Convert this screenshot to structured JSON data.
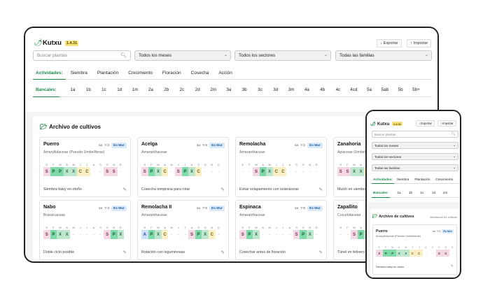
{
  "app": {
    "name": "Kutxu",
    "version": "1.4.31"
  },
  "toolbar": {
    "export_label": "Exportar",
    "import_label": "Importar"
  },
  "filters": {
    "search_placeholder": "Buscar plantas",
    "months": "Todos los meses",
    "sectors": "Todos los sectores",
    "families": "Todas las familias"
  },
  "activities": {
    "label": "Actividades:",
    "items": [
      "Siembra",
      "Plantación",
      "Crecimiento",
      "Floración",
      "Cosecha",
      "Acción"
    ]
  },
  "bancales": {
    "label": "Bancales:",
    "items": [
      "1a",
      "1b",
      "1c",
      "1d",
      "1m",
      "2a",
      "2b",
      "2c",
      "2d",
      "2m",
      "3a",
      "3b",
      "3c",
      "3d",
      "3m",
      "4a",
      "4b",
      "4c",
      "4cd",
      "5a",
      "5ab",
      "5b",
      "5b+"
    ]
  },
  "archive": {
    "title": "Archivo de cultivos",
    "count": "Mostrando 81 cultivos"
  },
  "month_letters": [
    "E",
    "F",
    "M",
    "A",
    "M",
    "J",
    "J",
    "A",
    "S",
    "O",
    "N",
    "D"
  ],
  "crops": [
    {
      "name": "Puerro",
      "family": "Amaryllidaceae (Pseudo Umbelíferas)",
      "meta1": "4a",
      "meta2": "Y:3",
      "badge": "Es Mur",
      "cells": [
        "S",
        "P",
        "P",
        "X",
        "X",
        "C",
        "C",
        "-",
        "-",
        "S",
        "S",
        "-"
      ],
      "note": "Siembra baby en otoño"
    },
    {
      "name": "Acelga",
      "family": "Amaranthaceae",
      "meta1": "4a",
      "meta2": "Y:6",
      "badge": "Es Mur",
      "cells": [
        "S",
        "P",
        "X",
        "C",
        "-",
        "S",
        "P",
        "X",
        "C",
        "-",
        "-",
        "-"
      ],
      "note": "Cosecha temprana para rotar"
    },
    {
      "name": "Remolacha",
      "family": "Amaranthaceae",
      "meta1": "4a",
      "meta2": "Y:2",
      "badge": "Es Mur",
      "cells": [
        "-",
        "-",
        "S",
        "P",
        "X",
        "C",
        "C",
        "-",
        "-",
        "-",
        "-",
        "-"
      ],
      "note": "Evitar solapamiento con solanáceas"
    },
    {
      "name": "Zanahoria",
      "family": "Apiaceae (Umbelíferas)",
      "meta1": "",
      "meta2": "",
      "badge": "",
      "cells": [
        "S",
        "S",
        "X",
        "X",
        "C",
        "-",
        "-",
        "-",
        "-",
        "-",
        "-",
        "-"
      ],
      "note": "Mulch en siembra"
    },
    {
      "name": "Nabo",
      "family": "Brassicaceae",
      "meta1": "1a",
      "meta2": "Y:3",
      "badge": "Es Mur",
      "cells": [
        "S",
        "P",
        "X",
        "X",
        "-",
        "-",
        "-",
        "-",
        "-",
        "S",
        "P",
        "X"
      ],
      "note": "Doble ciclo posible"
    },
    {
      "name": "Remolacha II",
      "family": "Amaranthaceae",
      "meta1": "1a",
      "meta2": "Y:5",
      "badge": "Es Mur",
      "cells": [
        "A",
        "P",
        "X",
        "C",
        "-",
        "-",
        "-",
        "S",
        "P",
        "X",
        "C",
        "-"
      ],
      "note": "Rotación con leguminosas"
    },
    {
      "name": "Espinaca",
      "family": "Amaranthaceae",
      "meta1": "1a",
      "meta2": "Y:5",
      "badge": "Es Mur",
      "cells": [
        "S",
        "P",
        "X",
        "-",
        "-",
        "-",
        "-",
        "-",
        "S",
        "P",
        "X",
        "-"
      ],
      "note": "Cosechar antes de floración"
    },
    {
      "name": "Zapallito",
      "family": "Cucurbitaceae",
      "meta1": "",
      "meta2": "",
      "badge": "",
      "cells": [
        "-",
        "-",
        "S",
        "P",
        "X",
        "C",
        "-",
        "-",
        "-",
        "-",
        "-",
        "-"
      ],
      "note": "Túnel en febrero"
    }
  ],
  "mobile_crop": {
    "name": "Puerro",
    "family": "Amaryllidaceae (Pseudo Umbelíferas)",
    "meta1": "4a",
    "meta2": "Y:3",
    "badge": "Es Mur",
    "cells": [
      "S",
      "P",
      "P",
      "X",
      "X",
      "C",
      "C",
      "-",
      "-",
      "S",
      "S",
      "-"
    ],
    "note": "Siembra baby en otoño"
  }
}
